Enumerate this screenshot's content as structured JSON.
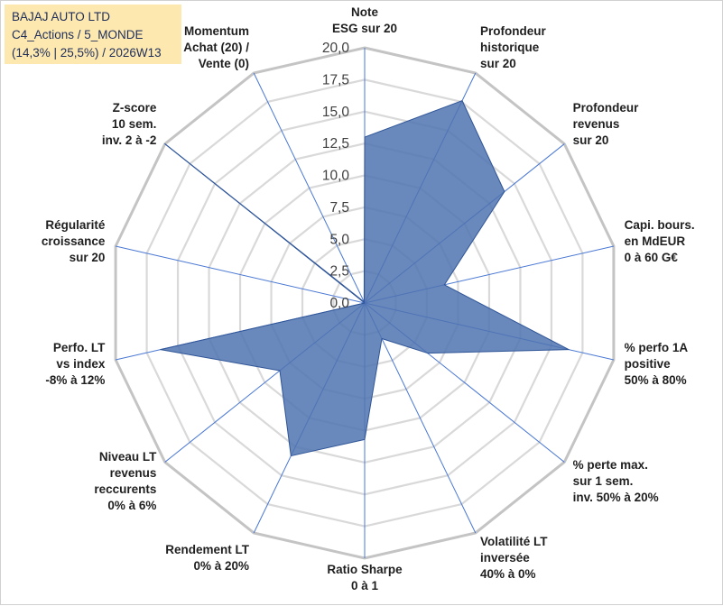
{
  "title_box": {
    "line1": "BAJAJ AUTO LTD",
    "line2": "C4_Actions / 5_MONDE",
    "line3": "(14,3% | 25,5%) / 2026W13"
  },
  "chart_data": {
    "type": "radar",
    "rmax": 20,
    "rlim": [
      0,
      20
    ],
    "tick_step": 2.5,
    "tick_labels": [
      "0,0",
      "2,5",
      "5,0",
      "7,5",
      "10,0",
      "12,5",
      "15,0",
      "17,5",
      "20,0"
    ],
    "axes": [
      [
        "Note",
        "ESG sur 20"
      ],
      [
        "Profondeur",
        "historique",
        "sur 20"
      ],
      [
        "Profondeur",
        "revenus",
        "sur 20"
      ],
      [
        "Capi. bours.",
        "en MdEUR",
        "0 à 60 G€"
      ],
      [
        "% perfo 1A",
        "positive",
        "50% à 80%"
      ],
      [
        "% perte max.",
        "sur 1 sem.",
        "inv. 50% à 20%"
      ],
      [
        "Volatilité LT",
        "inversée",
        "40% à 0%"
      ],
      [
        "Ratio Sharpe",
        "0 à 1"
      ],
      [
        "Rendement LT",
        "0% à 20%"
      ],
      [
        "Niveau LT",
        "revenus",
        "reccurents",
        "0% à 6%"
      ],
      [
        "Perfo. LT",
        "vs index",
        "-8% à 12%"
      ],
      [
        "Régularité",
        "croissance",
        "sur 20"
      ],
      [
        "Z-score",
        "10 sem.",
        "inv. 2 à -2"
      ],
      [
        "Momentum",
        "Achat (20) /",
        "Vente (0)"
      ]
    ],
    "series": [
      {
        "name": "BAJAJ AUTO LTD",
        "values": [
          13,
          17.6,
          14.0,
          6.4,
          16.4,
          6.3,
          3.1,
          10.7,
          13.3,
          8.5,
          16.4,
          0,
          20.0,
          0.1
        ]
      }
    ],
    "colors": {
      "fill": "#4f73b0",
      "stroke": "#2f5597",
      "grid": "#bfbfbf",
      "spoke": "#4a78d4",
      "text": "#1f1f1f"
    }
  }
}
